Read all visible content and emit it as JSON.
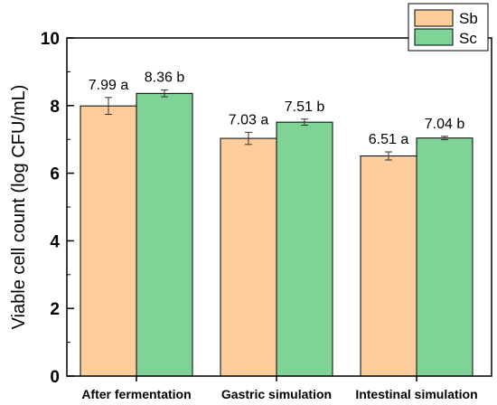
{
  "chart_data": {
    "type": "bar",
    "title": "",
    "xlabel": "",
    "ylabel": "Viable cell count (log CFU/mL)",
    "ylim": [
      0,
      10
    ],
    "yticks": [
      0,
      2,
      4,
      6,
      8,
      10
    ],
    "categories": [
      "After fermentation",
      "Gastric simulation",
      "Intestinal simulation"
    ],
    "series": [
      {
        "name": "Sb",
        "color": "#FDCE9B",
        "values": [
          7.99,
          7.03,
          6.51
        ],
        "errors": [
          0.25,
          0.18,
          0.12
        ],
        "labels": [
          "7.99 a",
          "7.03 a",
          "6.51 a"
        ]
      },
      {
        "name": "Sc",
        "color": "#7FD396",
        "values": [
          8.36,
          7.51,
          7.04
        ],
        "errors": [
          0.1,
          0.09,
          0.05
        ],
        "labels": [
          "8.36 b",
          "7.51 b",
          "7.04 b"
        ]
      }
    ],
    "legend_position": "top-right",
    "grid": false
  }
}
